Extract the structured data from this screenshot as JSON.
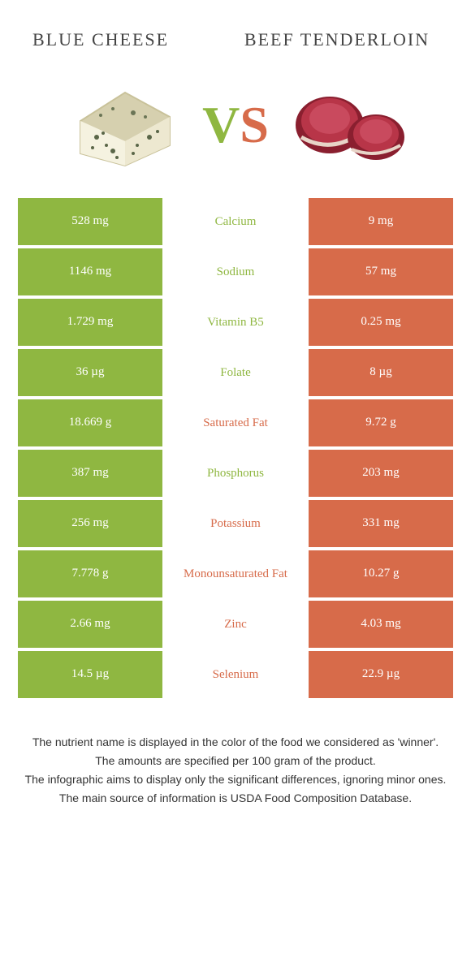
{
  "colors": {
    "left": "#8fb741",
    "right": "#d76b4a",
    "left_cell_bg": "#8fb741",
    "right_cell_bg": "#d76b4a",
    "cheese_rind": "#c9c29a",
    "cheese_body": "#f5f2e0",
    "cheese_vein": "#5a6648",
    "beef_outer": "#8a1f2f",
    "beef_inner": "#b83548",
    "beef_fat": "#e8d5c8"
  },
  "header": {
    "left_title": "BLUE CHEESE",
    "right_title": "BEEF TENDERLOIN"
  },
  "rows": [
    {
      "left": "528 mg",
      "label": "Calcium",
      "right": "9 mg",
      "winner": "left"
    },
    {
      "left": "1146 mg",
      "label": "Sodium",
      "right": "57 mg",
      "winner": "left"
    },
    {
      "left": "1.729 mg",
      "label": "Vitamin B5",
      "right": "0.25 mg",
      "winner": "left"
    },
    {
      "left": "36 µg",
      "label": "Folate",
      "right": "8 µg",
      "winner": "left"
    },
    {
      "left": "18.669 g",
      "label": "Saturated Fat",
      "right": "9.72 g",
      "winner": "right"
    },
    {
      "left": "387 mg",
      "label": "Phosphorus",
      "right": "203 mg",
      "winner": "left"
    },
    {
      "left": "256 mg",
      "label": "Potassium",
      "right": "331 mg",
      "winner": "right"
    },
    {
      "left": "7.778 g",
      "label": "Monounsaturated Fat",
      "right": "10.27 g",
      "winner": "right"
    },
    {
      "left": "2.66 mg",
      "label": "Zinc",
      "right": "4.03 mg",
      "winner": "right"
    },
    {
      "left": "14.5 µg",
      "label": "Selenium",
      "right": "22.9 µg",
      "winner": "right"
    }
  ],
  "footer": {
    "line1": "The nutrient name is displayed in the color of the food we considered as 'winner'.",
    "line2": "The amounts are specified per 100 gram of the product.",
    "line3": "The infographic aims to display only the significant differences, ignoring minor ones.",
    "line4": "The main source of information is USDA Food Composition Database."
  }
}
